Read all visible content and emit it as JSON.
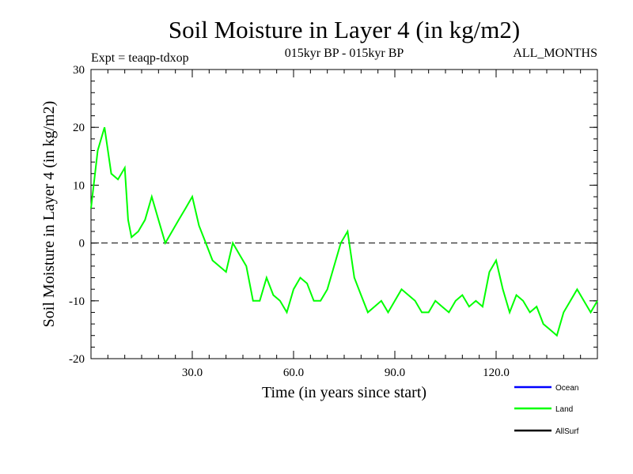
{
  "chart_data": {
    "type": "line",
    "title": "Soil Moisture in Layer 4 (in kg/m2)",
    "subtitle_left": "Expt = teaqp-tdxop",
    "subtitle_center": "015kyr BP - 015kyr BP",
    "subtitle_right": "ALL_MONTHS",
    "xlabel": "Time (in years since start)",
    "ylabel": "Soil Moisture in Layer 4 (in kg/m2)",
    "xlim": [
      0,
      150
    ],
    "ylim": [
      -20,
      30
    ],
    "xticks": [
      30,
      60,
      90,
      120
    ],
    "xtick_labels": [
      "30.0",
      "60.0",
      "90.0",
      "120.0"
    ],
    "yticks": [
      -20,
      -10,
      0,
      10,
      20,
      30
    ],
    "ytick_labels": [
      "-20",
      "-10",
      "0",
      "10",
      "20",
      "30"
    ],
    "reference_line": {
      "y": 0,
      "style": "dashed"
    },
    "legend": [
      {
        "name": "Ocean",
        "color": "#0000ff"
      },
      {
        "name": "Land",
        "color": "#00ff00"
      },
      {
        "name": "AllSurf",
        "color": "#000000"
      }
    ],
    "series": [
      {
        "name": "Land",
        "color": "#00ff00",
        "x": [
          0,
          2,
          4,
          6,
          8,
          10,
          11,
          12,
          14,
          16,
          18,
          20,
          22,
          24,
          26,
          28,
          30,
          32,
          34,
          36,
          38,
          40,
          42,
          44,
          46,
          48,
          50,
          52,
          54,
          56,
          58,
          60,
          62,
          64,
          66,
          68,
          70,
          72,
          74,
          76,
          78,
          80,
          82,
          84,
          86,
          88,
          90,
          92,
          94,
          96,
          98,
          100,
          102,
          104,
          106,
          108,
          110,
          112,
          114,
          116,
          118,
          120,
          122,
          124,
          126,
          128,
          130,
          132,
          134,
          136,
          138,
          140,
          142,
          144,
          146,
          148,
          150
        ],
        "values": [
          6,
          16,
          20,
          12,
          11,
          13,
          4,
          1,
          2,
          4,
          8,
          4,
          0,
          2,
          4,
          6,
          8,
          3,
          0,
          -3,
          -4,
          -5,
          0,
          -2,
          -4,
          -10,
          -10,
          -6,
          -9,
          -10,
          -12,
          -8,
          -6,
          -7,
          -10,
          -10,
          -8,
          -4,
          0,
          2,
          -6,
          -9,
          -12,
          -11,
          -10,
          -12,
          -10,
          -8,
          -9,
          -10,
          -12,
          -12,
          -10,
          -11,
          -12,
          -10,
          -9,
          -11,
          -10,
          -11,
          -5,
          -3,
          -8,
          -12,
          -9,
          -10,
          -12,
          -11,
          -14,
          -15,
          -16,
          -12,
          -10,
          -8,
          -10,
          -12,
          -10
        ]
      }
    ]
  }
}
